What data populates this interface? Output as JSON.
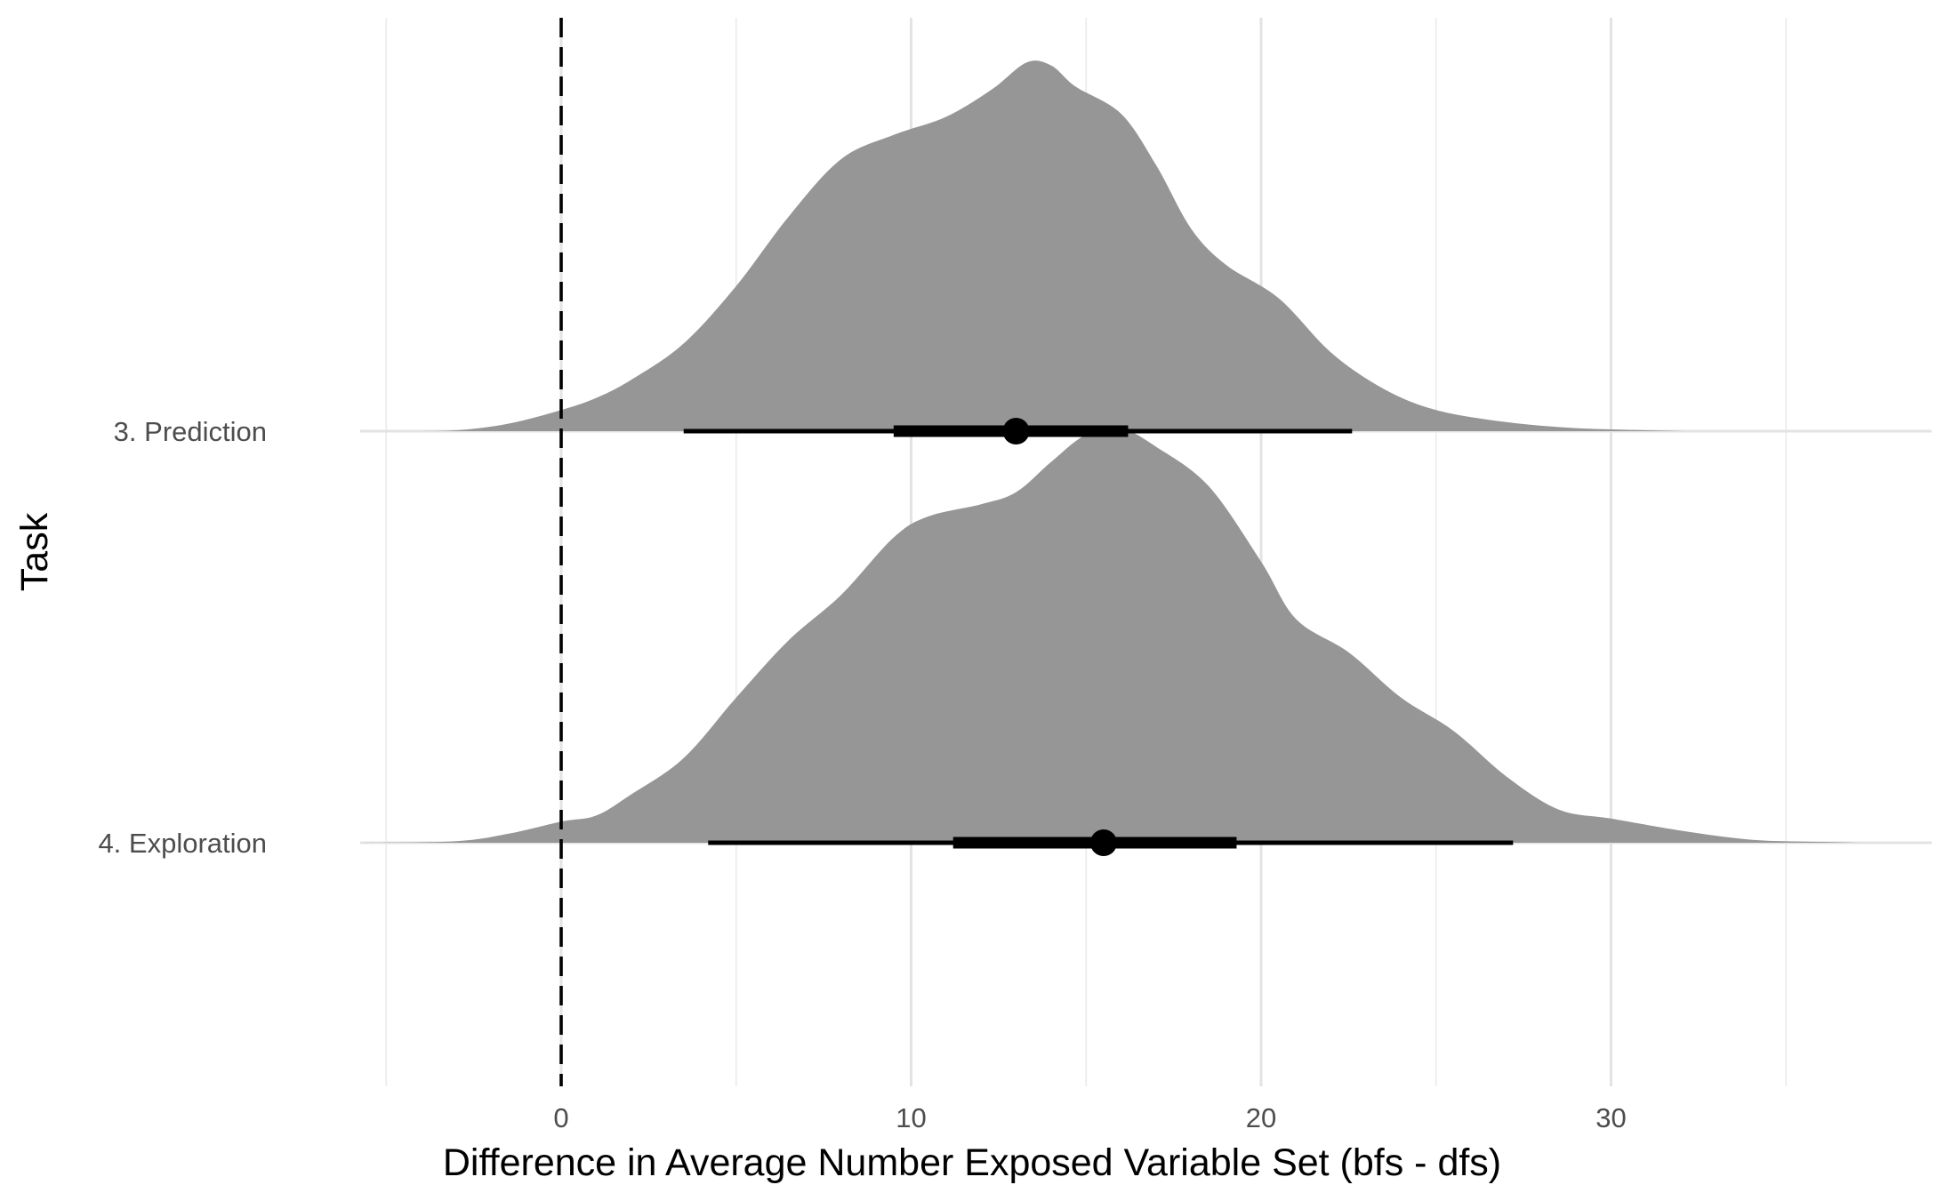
{
  "chart_data": {
    "type": "halfeye",
    "xlabel": "Difference in Average Number Exposed Variable Set (bfs - dfs)",
    "ylabel": "Task",
    "xlim": [
      -5.5,
      38.3
    ],
    "x_ticks": [
      0,
      10,
      20,
      30
    ],
    "x_minor_ticks": [
      -5,
      5,
      15,
      25,
      35
    ],
    "grid": true,
    "reference_line": {
      "x": 0,
      "style": "dashed"
    },
    "fill_color": "#969696",
    "interval_color": "#000000",
    "categories": [
      "3. Prediction",
      "4. Exploration"
    ],
    "series": [
      {
        "name": "3. Prediction",
        "point_estimate": 13.0,
        "interval_66": [
          9.5,
          16.2
        ],
        "interval_95": [
          3.5,
          22.6
        ],
        "density": {
          "x": [
            -4.8,
            -3,
            -1.5,
            0,
            1,
            2,
            3.5,
            5,
            6.5,
            8,
            9.5,
            11,
            12.3,
            13.3,
            14,
            14.7,
            16,
            17,
            18,
            19,
            20.5,
            22,
            23.5,
            25,
            27,
            29,
            31,
            32.1
          ],
          "y": [
            0.0,
            0.003,
            0.025,
            0.07,
            0.11,
            0.17,
            0.29,
            0.48,
            0.71,
            0.9,
            0.98,
            1.04,
            1.13,
            1.22,
            1.21,
            1.14,
            1.05,
            0.88,
            0.67,
            0.55,
            0.44,
            0.26,
            0.14,
            0.07,
            0.03,
            0.01,
            0.003,
            0.0
          ]
        }
      },
      {
        "name": "4. Exploration",
        "point_estimate": 15.5,
        "interval_66": [
          11.2,
          19.3
        ],
        "interval_95": [
          4.2,
          27.2
        ],
        "density": {
          "x": [
            -5.7,
            -3,
            -1.5,
            0,
            1,
            2,
            3.5,
            5,
            6.5,
            8,
            9.5,
            10.5,
            12,
            13,
            14,
            15,
            16,
            17,
            18.5,
            20,
            21,
            22.5,
            24,
            25.5,
            27,
            28.5,
            30,
            32,
            34,
            36,
            37.1
          ],
          "y": [
            0.0,
            0.005,
            0.03,
            0.07,
            0.09,
            0.16,
            0.28,
            0.48,
            0.67,
            0.82,
            1.01,
            1.08,
            1.12,
            1.16,
            1.26,
            1.35,
            1.37,
            1.31,
            1.18,
            0.93,
            0.74,
            0.63,
            0.48,
            0.37,
            0.22,
            0.11,
            0.08,
            0.04,
            0.01,
            0.003,
            0.0
          ]
        }
      }
    ]
  }
}
